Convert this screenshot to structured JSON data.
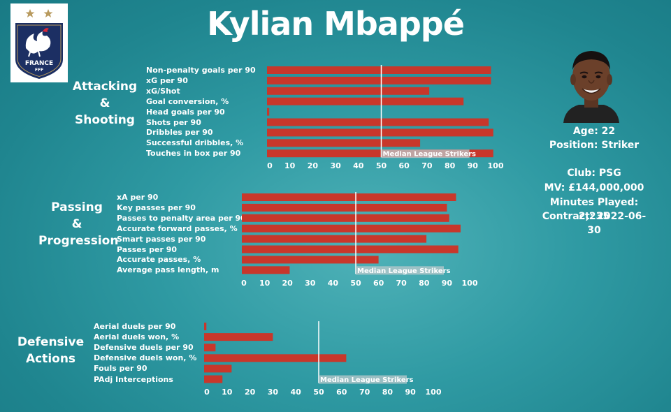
{
  "player": {
    "name": "Kylian Mbappé",
    "age": "Age: 22",
    "position": "Position: Striker",
    "club": "Club: PSG",
    "mv": "MV: £144,000,000",
    "minutes": "Minutes Played: 2,235",
    "contract": "Contract: 2022-06-30"
  },
  "logo": {
    "text": "FRANCE",
    "subtext": "FFF"
  },
  "colors": {
    "bar": "#c8372b",
    "median_line": "#ffffff",
    "median_label_bg": "#bcc9cc"
  },
  "chart_data": [
    {
      "type": "bar",
      "orientation": "horizontal",
      "group": [
        "Attacking",
        "&",
        "Shooting"
      ],
      "categories": [
        "Non-penalty goals per 90",
        "xG per 90",
        "xG/Shot",
        "Goal conversion, %",
        "Head goals per 90",
        "Shots per 90",
        "Dribbles per 90",
        "Successful dribbles, %",
        "Touches in box per 90"
      ],
      "values": [
        98,
        98,
        71,
        86,
        1,
        97,
        99,
        67,
        99
      ],
      "xlim": [
        0,
        100
      ],
      "ticks": [
        "0",
        "10",
        "20",
        "30",
        "40",
        "50",
        "60",
        "70",
        "80",
        "90",
        "100"
      ],
      "median": 50,
      "median_label": "Median League Strikers"
    },
    {
      "type": "bar",
      "orientation": "horizontal",
      "group": [
        "Passing",
        "&",
        "Progression"
      ],
      "categories": [
        "xA per 90",
        "Key passes per 90",
        "Passes to penalty area per 90",
        "Accurate forward passes, %",
        "Smart passes per 90",
        "Passes per 90",
        "Accurate passes, %",
        "Average pass length, m"
      ],
      "values": [
        94,
        90,
        91,
        96,
        81,
        95,
        60,
        21
      ],
      "xlim": [
        0,
        100
      ],
      "ticks": [
        "0",
        "10",
        "20",
        "30",
        "40",
        "50",
        "60",
        "70",
        "80",
        "90",
        "100"
      ],
      "median": 50,
      "median_label": "Median League Strikers"
    },
    {
      "type": "bar",
      "orientation": "horizontal",
      "group": [
        "Defensive",
        "Actions"
      ],
      "categories": [
        "Aerial duels per 90",
        "Aerial duels won, %",
        "Defensive duels per 90",
        "Defensive duels won, %",
        "Fouls per 90",
        "PAdj Interceptions"
      ],
      "values": [
        1,
        30,
        5,
        62,
        12,
        8
      ],
      "xlim": [
        0,
        100
      ],
      "ticks": [
        "0",
        "10",
        "20",
        "30",
        "40",
        "50",
        "60",
        "70",
        "80",
        "90",
        "100"
      ],
      "median": 50,
      "median_label": "Median League Strikers"
    }
  ]
}
